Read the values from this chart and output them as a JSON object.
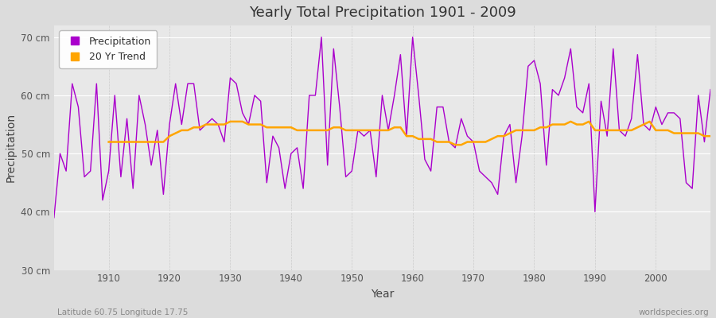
{
  "title": "Yearly Total Precipitation 1901 - 2009",
  "xlabel": "Year",
  "ylabel": "Precipitation",
  "lat_lon_label": "Latitude 60.75 Longitude 17.75",
  "watermark": "worldspecies.org",
  "precip_color": "#AA00CC",
  "trend_color": "#FFA500",
  "background_color": "#DCDCDC",
  "plot_bg_color": "#E8E8E8",
  "grid_color_h": "#FFFFFF",
  "grid_color_v": "#CCCCCC",
  "ylim": [
    30,
    72
  ],
  "yticks": [
    30,
    40,
    50,
    60,
    70
  ],
  "ytick_labels": [
    "30 cm",
    "40 cm",
    "50 cm",
    "60 cm",
    "70 cm"
  ],
  "xlim": [
    1901,
    2009
  ],
  "years": [
    1901,
    1902,
    1903,
    1904,
    1905,
    1906,
    1907,
    1908,
    1909,
    1910,
    1911,
    1912,
    1913,
    1914,
    1915,
    1916,
    1917,
    1918,
    1919,
    1920,
    1921,
    1922,
    1923,
    1924,
    1925,
    1926,
    1927,
    1928,
    1929,
    1930,
    1931,
    1932,
    1933,
    1934,
    1935,
    1936,
    1937,
    1938,
    1939,
    1940,
    1941,
    1942,
    1943,
    1944,
    1945,
    1946,
    1947,
    1948,
    1949,
    1950,
    1951,
    1952,
    1953,
    1954,
    1955,
    1956,
    1957,
    1958,
    1959,
    1960,
    1961,
    1962,
    1963,
    1964,
    1965,
    1966,
    1967,
    1968,
    1969,
    1970,
    1971,
    1972,
    1973,
    1974,
    1975,
    1976,
    1977,
    1978,
    1979,
    1980,
    1981,
    1982,
    1983,
    1984,
    1985,
    1986,
    1987,
    1988,
    1989,
    1990,
    1991,
    1992,
    1993,
    1994,
    1995,
    1996,
    1997,
    1998,
    1999,
    2000,
    2001,
    2002,
    2003,
    2004,
    2005,
    2006,
    2007,
    2008,
    2009
  ],
  "precip": [
    39,
    50,
    47,
    62,
    58,
    46,
    47,
    62,
    42,
    47,
    60,
    46,
    56,
    44,
    60,
    55,
    48,
    54,
    43,
    55,
    62,
    55,
    62,
    62,
    54,
    55,
    56,
    55,
    52,
    63,
    62,
    57,
    55,
    60,
    59,
    45,
    53,
    51,
    44,
    50,
    51,
    44,
    60,
    60,
    70,
    48,
    68,
    58,
    46,
    47,
    54,
    53,
    54,
    46,
    60,
    54,
    60,
    67,
    53,
    70,
    60,
    49,
    47,
    58,
    58,
    52,
    51,
    56,
    53,
    52,
    47,
    46,
    45,
    43,
    53,
    55,
    45,
    53,
    65,
    66,
    62,
    48,
    61,
    60,
    63,
    68,
    58,
    57,
    62,
    40,
    59,
    53,
    68,
    54,
    53,
    56,
    67,
    55,
    54,
    58,
    55,
    57,
    57,
    56,
    45,
    44,
    60,
    52,
    61
  ],
  "trend": [
    null,
    null,
    null,
    null,
    null,
    null,
    null,
    null,
    null,
    52,
    52,
    52,
    52,
    52,
    52,
    52,
    52,
    52,
    52,
    53,
    53.5,
    54,
    54,
    54.5,
    54.5,
    55,
    55,
    55,
    55,
    55.5,
    55.5,
    55.5,
    55,
    55,
    55,
    54.5,
    54.5,
    54.5,
    54.5,
    54.5,
    54,
    54,
    54,
    54,
    54,
    54,
    54.5,
    54.5,
    54,
    54,
    54,
    54,
    54,
    54,
    54,
    54,
    54.5,
    54.5,
    53,
    53,
    52.5,
    52.5,
    52.5,
    52,
    52,
    52,
    51.5,
    51.5,
    52,
    52,
    52,
    52,
    52.5,
    53,
    53,
    53.5,
    54,
    54,
    54,
    54,
    54.5,
    54.5,
    55,
    55,
    55,
    55.5,
    55,
    55,
    55.5,
    54,
    54,
    54,
    54,
    54,
    54,
    54,
    54.5,
    55,
    55.5,
    54,
    54,
    54,
    53.5,
    53.5,
    53.5,
    53.5,
    53.5,
    53,
    53
  ]
}
